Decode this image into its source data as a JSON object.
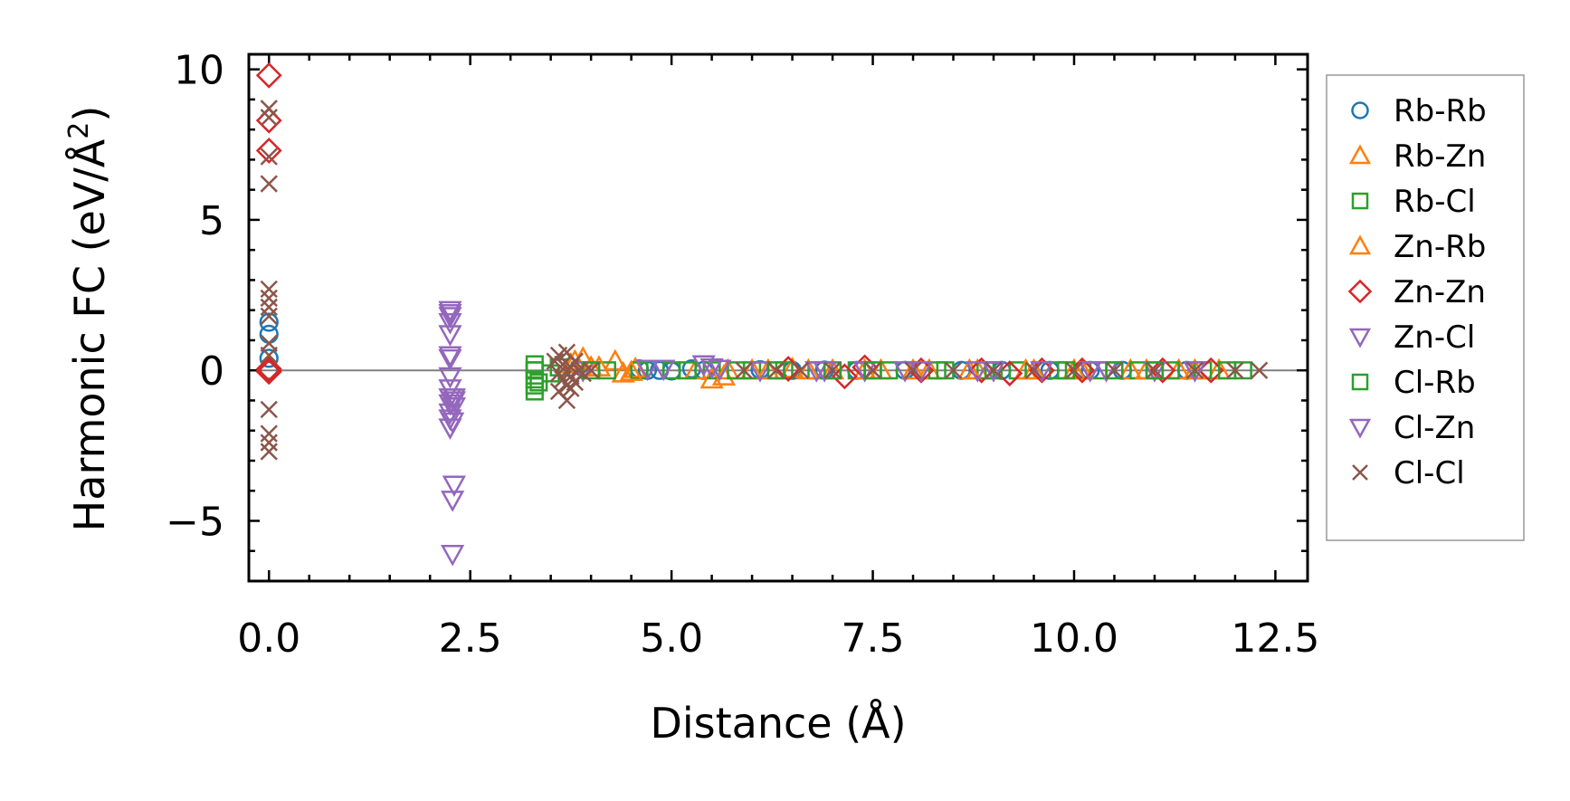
{
  "chart_data": {
    "type": "scatter",
    "title": "",
    "xlabel": "Distance (Å)",
    "ylabel": "Harmonic FC (eV/Å",
    "ylabel_superscript": "2",
    "ylabel_suffix": ")",
    "xlim": [
      -0.25,
      12.9
    ],
    "ylim": [
      -7.0,
      10.5
    ],
    "xticks": [
      0.0,
      2.5,
      5.0,
      7.5,
      10.0,
      12.5
    ],
    "xtick_labels": [
      "0.0",
      "2.5",
      "5.0",
      "7.5",
      "10.0",
      "12.5"
    ],
    "yticks": [
      -5,
      0,
      5,
      10
    ],
    "ytick_labels": [
      "−5",
      "0",
      "5",
      "10"
    ],
    "zero_line": true,
    "grid": false,
    "legend_position": "right",
    "series": [
      {
        "name": "Rb-Rb",
        "marker": "circle",
        "color": "#1f77b4",
        "x": [
          0,
          0,
          0,
          0,
          4.6,
          4.7,
          4.85,
          5.0,
          5.25,
          5.4,
          6.1,
          6.5,
          6.9,
          7.3,
          7.9,
          8.6,
          9.1,
          9.7,
          10.2,
          10.6,
          11.4
        ],
        "y": [
          1.6,
          1.2,
          0.4,
          0.0,
          0.05,
          0.0,
          0.0,
          -0.02,
          0.05,
          0.0,
          0.02,
          0.0,
          0.01,
          0.0,
          0.0,
          0.0,
          0.0,
          0.0,
          0.0,
          0.0,
          0.0
        ]
      },
      {
        "name": "Rb-Zn",
        "marker": "triangle-up",
        "color": "#ff7f0e",
        "x": [
          3.75,
          3.9,
          4.0,
          4.3,
          4.4,
          4.55,
          5.5,
          5.65,
          6.0,
          6.5,
          7.0,
          7.6,
          8.2,
          8.8,
          9.5,
          10.0,
          10.7,
          11.3,
          11.8
        ],
        "y": [
          0.2,
          0.4,
          0.1,
          0.3,
          -0.1,
          0.05,
          -0.3,
          -0.2,
          0.0,
          0.05,
          0.0,
          0.0,
          0.0,
          0.0,
          0.0,
          0.0,
          0.0,
          0.0,
          0.0
        ]
      },
      {
        "name": "Rb-Cl",
        "marker": "square",
        "color": "#2ca02c",
        "x": [
          3.3,
          3.3,
          3.3,
          3.3,
          3.35,
          3.5,
          3.6,
          4.2,
          4.6,
          5.0,
          5.5,
          6.0,
          6.4,
          6.8,
          7.3,
          7.7,
          8.3,
          8.9,
          9.3,
          9.8,
          10.3,
          10.8,
          11.2,
          11.6,
          12.1
        ],
        "y": [
          -0.7,
          -0.3,
          0.0,
          0.2,
          -0.4,
          -0.1,
          0.1,
          0.0,
          0.0,
          0.0,
          0.0,
          0.0,
          0.0,
          0.0,
          0.0,
          0.0,
          0.0,
          0.0,
          0.0,
          0.0,
          0.0,
          0.0,
          0.0,
          0.0,
          0.0
        ]
      },
      {
        "name": "Zn-Rb",
        "marker": "triangle-up",
        "color": "#ff7f0e",
        "x": [
          3.8,
          4.1,
          4.5,
          5.3,
          5.7,
          6.2,
          6.7,
          7.4,
          8.0,
          8.7,
          9.4,
          10.1,
          10.9,
          11.5
        ],
        "y": [
          0.3,
          0.1,
          -0.05,
          0.0,
          0.0,
          0.0,
          0.0,
          0.0,
          0.0,
          0.0,
          0.0,
          0.0,
          0.0,
          0.0
        ]
      },
      {
        "name": "Zn-Zn",
        "marker": "diamond",
        "color": "#d62728",
        "x": [
          0,
          0,
          0,
          0,
          0,
          0,
          6.45,
          7.15,
          7.4,
          8.1,
          8.85,
          9.2,
          9.6,
          10.1,
          11.1,
          11.7
        ],
        "y": [
          9.8,
          8.3,
          7.3,
          0.0,
          0.05,
          -0.05,
          0.05,
          -0.2,
          0.1,
          0.0,
          0.0,
          -0.1,
          0.0,
          0.0,
          0.0,
          0.0
        ]
      },
      {
        "name": "Zn-Cl",
        "marker": "triangle-down",
        "color": "#9467bd",
        "x": [
          2.25,
          2.25,
          2.25,
          2.25,
          2.25,
          2.25,
          2.25,
          2.25,
          2.25,
          2.25,
          2.25,
          2.28,
          2.3,
          2.3,
          2.3,
          2.28,
          2.28,
          3.9,
          4.7,
          5.4,
          5.5,
          6.1,
          6.8,
          7.4,
          8.1,
          8.8,
          9.6,
          10.4,
          11.0,
          11.5
        ],
        "y": [
          2.0,
          1.9,
          1.6,
          1.2,
          0.5,
          -0.2,
          -0.6,
          -0.9,
          -1.1,
          -1.4,
          -1.9,
          -1.7,
          -1.2,
          -0.9,
          -3.8,
          -4.3,
          -6.1,
          0.0,
          0.05,
          0.2,
          0.1,
          0.0,
          0.0,
          0.0,
          0.0,
          0.0,
          0.0,
          0.0,
          0.0,
          0.0
        ]
      },
      {
        "name": "Cl-Rb",
        "marker": "square",
        "color": "#2ca02c",
        "x": [
          3.3,
          3.3,
          4.0,
          5.2,
          5.8,
          6.3,
          7.0,
          7.5,
          8.4,
          9.0,
          9.9,
          10.5,
          11.0,
          11.9
        ],
        "y": [
          -0.5,
          0.0,
          0.0,
          0.0,
          0.0,
          0.0,
          0.0,
          0.0,
          0.0,
          0.0,
          0.0,
          0.0,
          0.0,
          0.0
        ]
      },
      {
        "name": "Cl-Zn",
        "marker": "triangle-down",
        "color": "#9467bd",
        "x": [
          2.25,
          2.25,
          2.25,
          2.3,
          4.9,
          5.6,
          6.9,
          7.9,
          9.0,
          10.2
        ],
        "y": [
          1.8,
          0.4,
          -1.6,
          -1.0,
          0.05,
          0.05,
          0.0,
          0.0,
          0.0,
          0.0
        ]
      },
      {
        "name": "Cl-Cl",
        "marker": "x",
        "color": "#8c564b",
        "x": [
          0,
          0,
          0,
          0,
          0,
          0,
          0,
          0,
          0,
          0,
          0,
          0,
          0,
          0,
          3.55,
          3.6,
          3.6,
          3.65,
          3.65,
          3.7,
          3.7,
          3.75,
          3.75,
          3.8,
          3.8,
          3.85,
          3.9,
          3.7,
          3.6,
          3.75,
          3.65,
          4.0,
          5.9,
          6.3,
          6.6,
          7.0,
          7.5,
          8.0,
          8.5,
          9.0,
          9.5,
          10.0,
          10.5,
          11.0,
          11.5,
          12.0,
          12.3
        ],
        "y": [
          8.7,
          8.4,
          7.1,
          6.2,
          2.7,
          2.4,
          2.1,
          1.8,
          0.9,
          0.5,
          -1.3,
          -2.1,
          -2.4,
          -2.7,
          0.3,
          0.5,
          -0.1,
          -0.3,
          0.2,
          0.6,
          -0.5,
          0.1,
          -0.2,
          -0.4,
          0.3,
          0.0,
          -0.1,
          -1.0,
          -0.7,
          -0.6,
          0.2,
          0.0,
          0.0,
          0.0,
          0.0,
          0.0,
          0.0,
          0.0,
          0.0,
          0.0,
          0.0,
          0.0,
          0.0,
          0.0,
          0.0,
          0.0,
          0.0
        ]
      }
    ]
  }
}
